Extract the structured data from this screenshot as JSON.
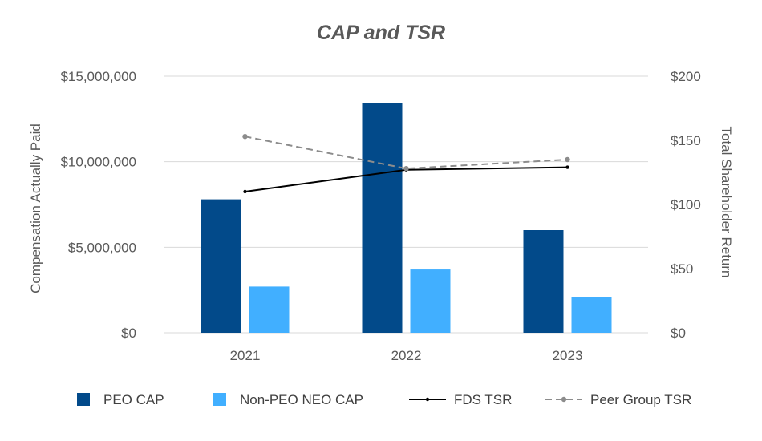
{
  "colors": {
    "peo_cap": "#024A8A",
    "non_peo_cap": "#41AFFF",
    "fds_tsr": "#000000",
    "peer_tsr": "#8C8C8C",
    "gridline": "#D9D9D9",
    "text": "#595959"
  },
  "chart_data": {
    "type": "bar",
    "title": "CAP and TSR",
    "categories": [
      "2021",
      "2022",
      "2023"
    ],
    "ylabel": "Compensation Actually Paid",
    "y2label": "Total Shareholder Return",
    "ylim": [
      0,
      15000000
    ],
    "y2lim": [
      0,
      200
    ],
    "yticks": [
      0,
      5000000,
      10000000,
      15000000
    ],
    "ytick_labels": [
      "$0",
      "$5,000,000",
      "$10,000,000",
      "$15,000,000"
    ],
    "y2ticks": [
      0,
      50,
      100,
      150,
      200
    ],
    "y2tick_labels": [
      "$0",
      "$50",
      "$100",
      "$150",
      "$200"
    ],
    "grid": true,
    "legend_position": "bottom",
    "series": [
      {
        "name": "PEO CAP",
        "type": "bar",
        "axis": "left",
        "values": [
          7800000,
          13450000,
          6000000
        ]
      },
      {
        "name": "Non-PEO NEO CAP",
        "type": "bar",
        "axis": "left",
        "values": [
          2700000,
          3700000,
          2100000
        ]
      },
      {
        "name": "FDS TSR",
        "type": "line",
        "axis": "right",
        "values": [
          110,
          127,
          129
        ]
      },
      {
        "name": "Peer Group TSR",
        "type": "line",
        "axis": "right",
        "dashed": true,
        "values": [
          153,
          128,
          135
        ]
      }
    ]
  }
}
